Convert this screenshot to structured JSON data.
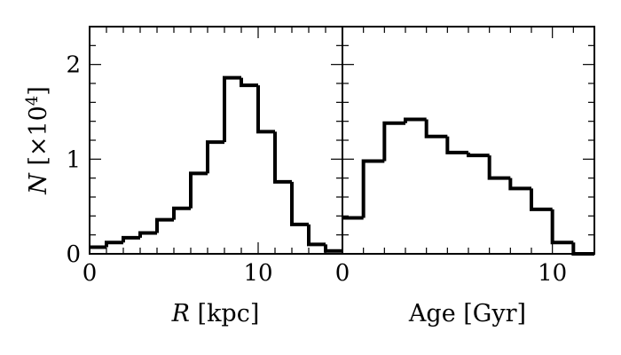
{
  "chart_data": {
    "type": "histogram",
    "shared_ylabel": {
      "prefix": "N",
      "middle": " [×10",
      "sup": "4",
      "suffix": "]"
    },
    "ylim": [
      0,
      2.4
    ],
    "yticks": [
      0,
      1,
      2
    ],
    "ytick_labels": [
      "0",
      "1",
      "2"
    ],
    "panels": [
      {
        "xlabel": {
          "var": "R",
          "rest": " [kpc]"
        },
        "xlim": [
          0,
          15
        ],
        "xticks": [
          0,
          10
        ],
        "xtick_labels": [
          "0",
          "10"
        ],
        "bin_width": 1,
        "bin_edges_start": 0,
        "values": [
          0.07,
          0.12,
          0.17,
          0.22,
          0.36,
          0.48,
          0.85,
          1.18,
          1.86,
          1.78,
          1.29,
          0.76,
          0.31,
          0.1,
          0.03
        ]
      },
      {
        "xlabel": {
          "var": "",
          "rest": "Age [Gyr]"
        },
        "xlim": [
          0,
          12
        ],
        "xticks": [
          0,
          10
        ],
        "xtick_labels": [
          "0",
          "10"
        ],
        "bin_width": 1,
        "bin_edges_start": 0,
        "values": [
          0.38,
          0.98,
          1.38,
          1.42,
          1.24,
          1.07,
          1.04,
          0.8,
          0.69,
          0.47,
          0.12,
          0.0
        ]
      }
    ]
  }
}
